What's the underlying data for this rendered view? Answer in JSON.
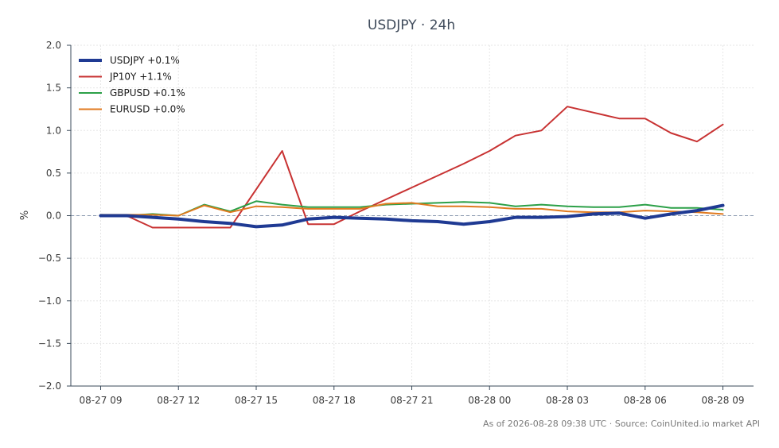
{
  "chart_data": {
    "type": "line",
    "title": "USDJPY · 24h",
    "ylabel": "%",
    "xlabel": "",
    "ylim": [
      -2.0,
      2.0
    ],
    "yticks": [
      2.0,
      1.5,
      1.0,
      0.5,
      0.0,
      -0.5,
      -1.0,
      -1.5,
      -2.0
    ],
    "ytick_labels": [
      "2.0",
      "1.5",
      "1.0",
      "0.5",
      "0.0",
      "−0.5",
      "−1.0",
      "−1.5",
      "−2.0"
    ],
    "xlim": [
      "2026-08-27 09:00",
      "2026-08-28 09:00"
    ],
    "xticks": [
      "08-27 09",
      "08-27 12",
      "08-27 15",
      "08-27 18",
      "08-27 21",
      "08-28 00",
      "08-28 03",
      "08-28 06",
      "08-28 09"
    ],
    "x": [
      "08-27 09",
      "08-27 10",
      "08-27 11",
      "08-27 12",
      "08-27 13",
      "08-27 14",
      "08-27 15",
      "08-27 16",
      "08-27 17",
      "08-27 18",
      "08-27 19",
      "08-27 20",
      "08-27 21",
      "08-27 22",
      "08-27 23",
      "08-28 00",
      "08-28 01",
      "08-28 02",
      "08-28 03",
      "08-28 04",
      "08-28 05",
      "08-28 06",
      "08-28 07",
      "08-28 08",
      "08-28 09"
    ],
    "grid": true,
    "legend_position": "top-left",
    "reference_line": 0.0,
    "series": [
      {
        "name": "USDJPY +0.1%",
        "color": "#1f3a93",
        "width": 4,
        "values": [
          0.0,
          0.0,
          -0.02,
          -0.04,
          -0.07,
          -0.09,
          -0.13,
          -0.11,
          -0.04,
          -0.02,
          -0.03,
          -0.04,
          -0.06,
          -0.07,
          -0.1,
          -0.07,
          -0.02,
          -0.02,
          -0.01,
          0.02,
          0.03,
          -0.03,
          0.02,
          0.06,
          0.12
        ]
      },
      {
        "name": "JP10Y +1.1%",
        "color": "#c83232",
        "width": 2,
        "values": [
          0.0,
          0.0,
          -0.14,
          -0.14,
          -0.14,
          -0.14,
          0.31,
          0.76,
          -0.1,
          -0.1,
          0.05,
          0.19,
          0.33,
          0.47,
          0.61,
          0.76,
          0.94,
          1.0,
          1.28,
          1.21,
          1.14,
          1.14,
          0.97,
          0.87,
          1.07
        ]
      },
      {
        "name": "GBPUSD +0.1%",
        "color": "#2ca048",
        "width": 2,
        "values": [
          0.01,
          0.0,
          0.02,
          0.0,
          0.13,
          0.05,
          0.17,
          0.13,
          0.1,
          0.1,
          0.1,
          0.13,
          0.14,
          0.15,
          0.16,
          0.15,
          0.11,
          0.13,
          0.11,
          0.1,
          0.1,
          0.13,
          0.09,
          0.09,
          0.07
        ]
      },
      {
        "name": "EURUSD +0.0%",
        "color": "#e07a1f",
        "width": 2,
        "values": [
          0.01,
          0.01,
          0.01,
          0.0,
          0.12,
          0.04,
          0.11,
          0.1,
          0.08,
          0.08,
          0.08,
          0.14,
          0.15,
          0.11,
          0.11,
          0.1,
          0.08,
          0.08,
          0.05,
          0.04,
          0.04,
          0.06,
          0.05,
          0.04,
          0.02
        ]
      }
    ]
  },
  "footer": "As of 2026-08-28 09:38 UTC · Source: CoinUnited.io market API"
}
